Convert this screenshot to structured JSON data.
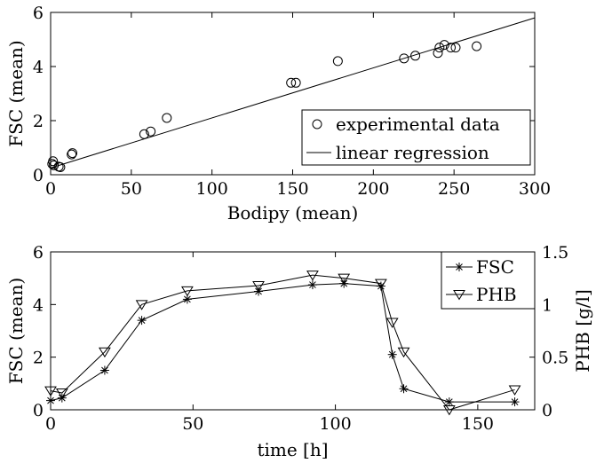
{
  "chart_data": [
    {
      "type": "scatter",
      "xlabel": "Bodipy (mean)",
      "ylabel": "FSC (mean)",
      "xlim": [
        0,
        300
      ],
      "ylim": [
        0,
        6
      ],
      "xticks": [
        0,
        50,
        100,
        150,
        200,
        250,
        300
      ],
      "yticks": [
        0,
        2,
        4,
        6
      ],
      "grid": false,
      "legend_position": "bottom-right",
      "series": [
        {
          "name": "experimental data",
          "marker": "circle",
          "x": [
            1,
            1.5,
            2,
            5,
            6,
            13,
            13.5,
            58,
            62,
            72,
            149,
            152,
            178,
            219,
            226,
            240,
            241,
            244,
            248,
            251,
            264
          ],
          "y": [
            0.4,
            0.5,
            0.35,
            0.3,
            0.28,
            0.75,
            0.8,
            1.5,
            1.6,
            2.1,
            3.4,
            3.4,
            4.2,
            4.3,
            4.4,
            4.5,
            4.7,
            4.8,
            4.7,
            4.7,
            4.75
          ]
        },
        {
          "name": "linear regression",
          "type": "line",
          "x": [
            0,
            300
          ],
          "y": [
            0.25,
            5.8
          ]
        }
      ]
    },
    {
      "type": "line",
      "xlabel": "time [h]",
      "ylabel": "FSC (mean)",
      "ylabel_right": "PHB [g/l]",
      "xlim": [
        0,
        170
      ],
      "ylim": [
        0,
        6
      ],
      "ylim_right": [
        0,
        1.5
      ],
      "xticks": [
        0,
        50,
        100,
        150
      ],
      "yticks": [
        0,
        2,
        4,
        6
      ],
      "yticks_right": [
        0,
        0.5,
        1,
        1.5
      ],
      "grid": false,
      "legend_position": "top-right",
      "series": [
        {
          "name": "FSC",
          "axis": "left",
          "marker": "asterisk",
          "x": [
            0,
            4,
            19,
            32,
            48,
            73,
            92,
            103,
            116,
            120,
            124,
            140,
            163
          ],
          "y": [
            0.35,
            0.45,
            1.5,
            3.4,
            4.2,
            4.5,
            4.75,
            4.8,
            4.7,
            2.1,
            0.8,
            0.3,
            0.3
          ]
        },
        {
          "name": "PHB",
          "axis": "right",
          "marker": "triangle-down",
          "x": [
            0,
            4,
            19,
            32,
            48,
            73,
            92,
            103,
            116,
            120,
            124,
            140,
            163
          ],
          "y": [
            0.18,
            0.16,
            0.55,
            1.0,
            1.13,
            1.18,
            1.28,
            1.25,
            1.2,
            0.83,
            0.55,
            0.0,
            0.19
          ]
        }
      ]
    }
  ]
}
